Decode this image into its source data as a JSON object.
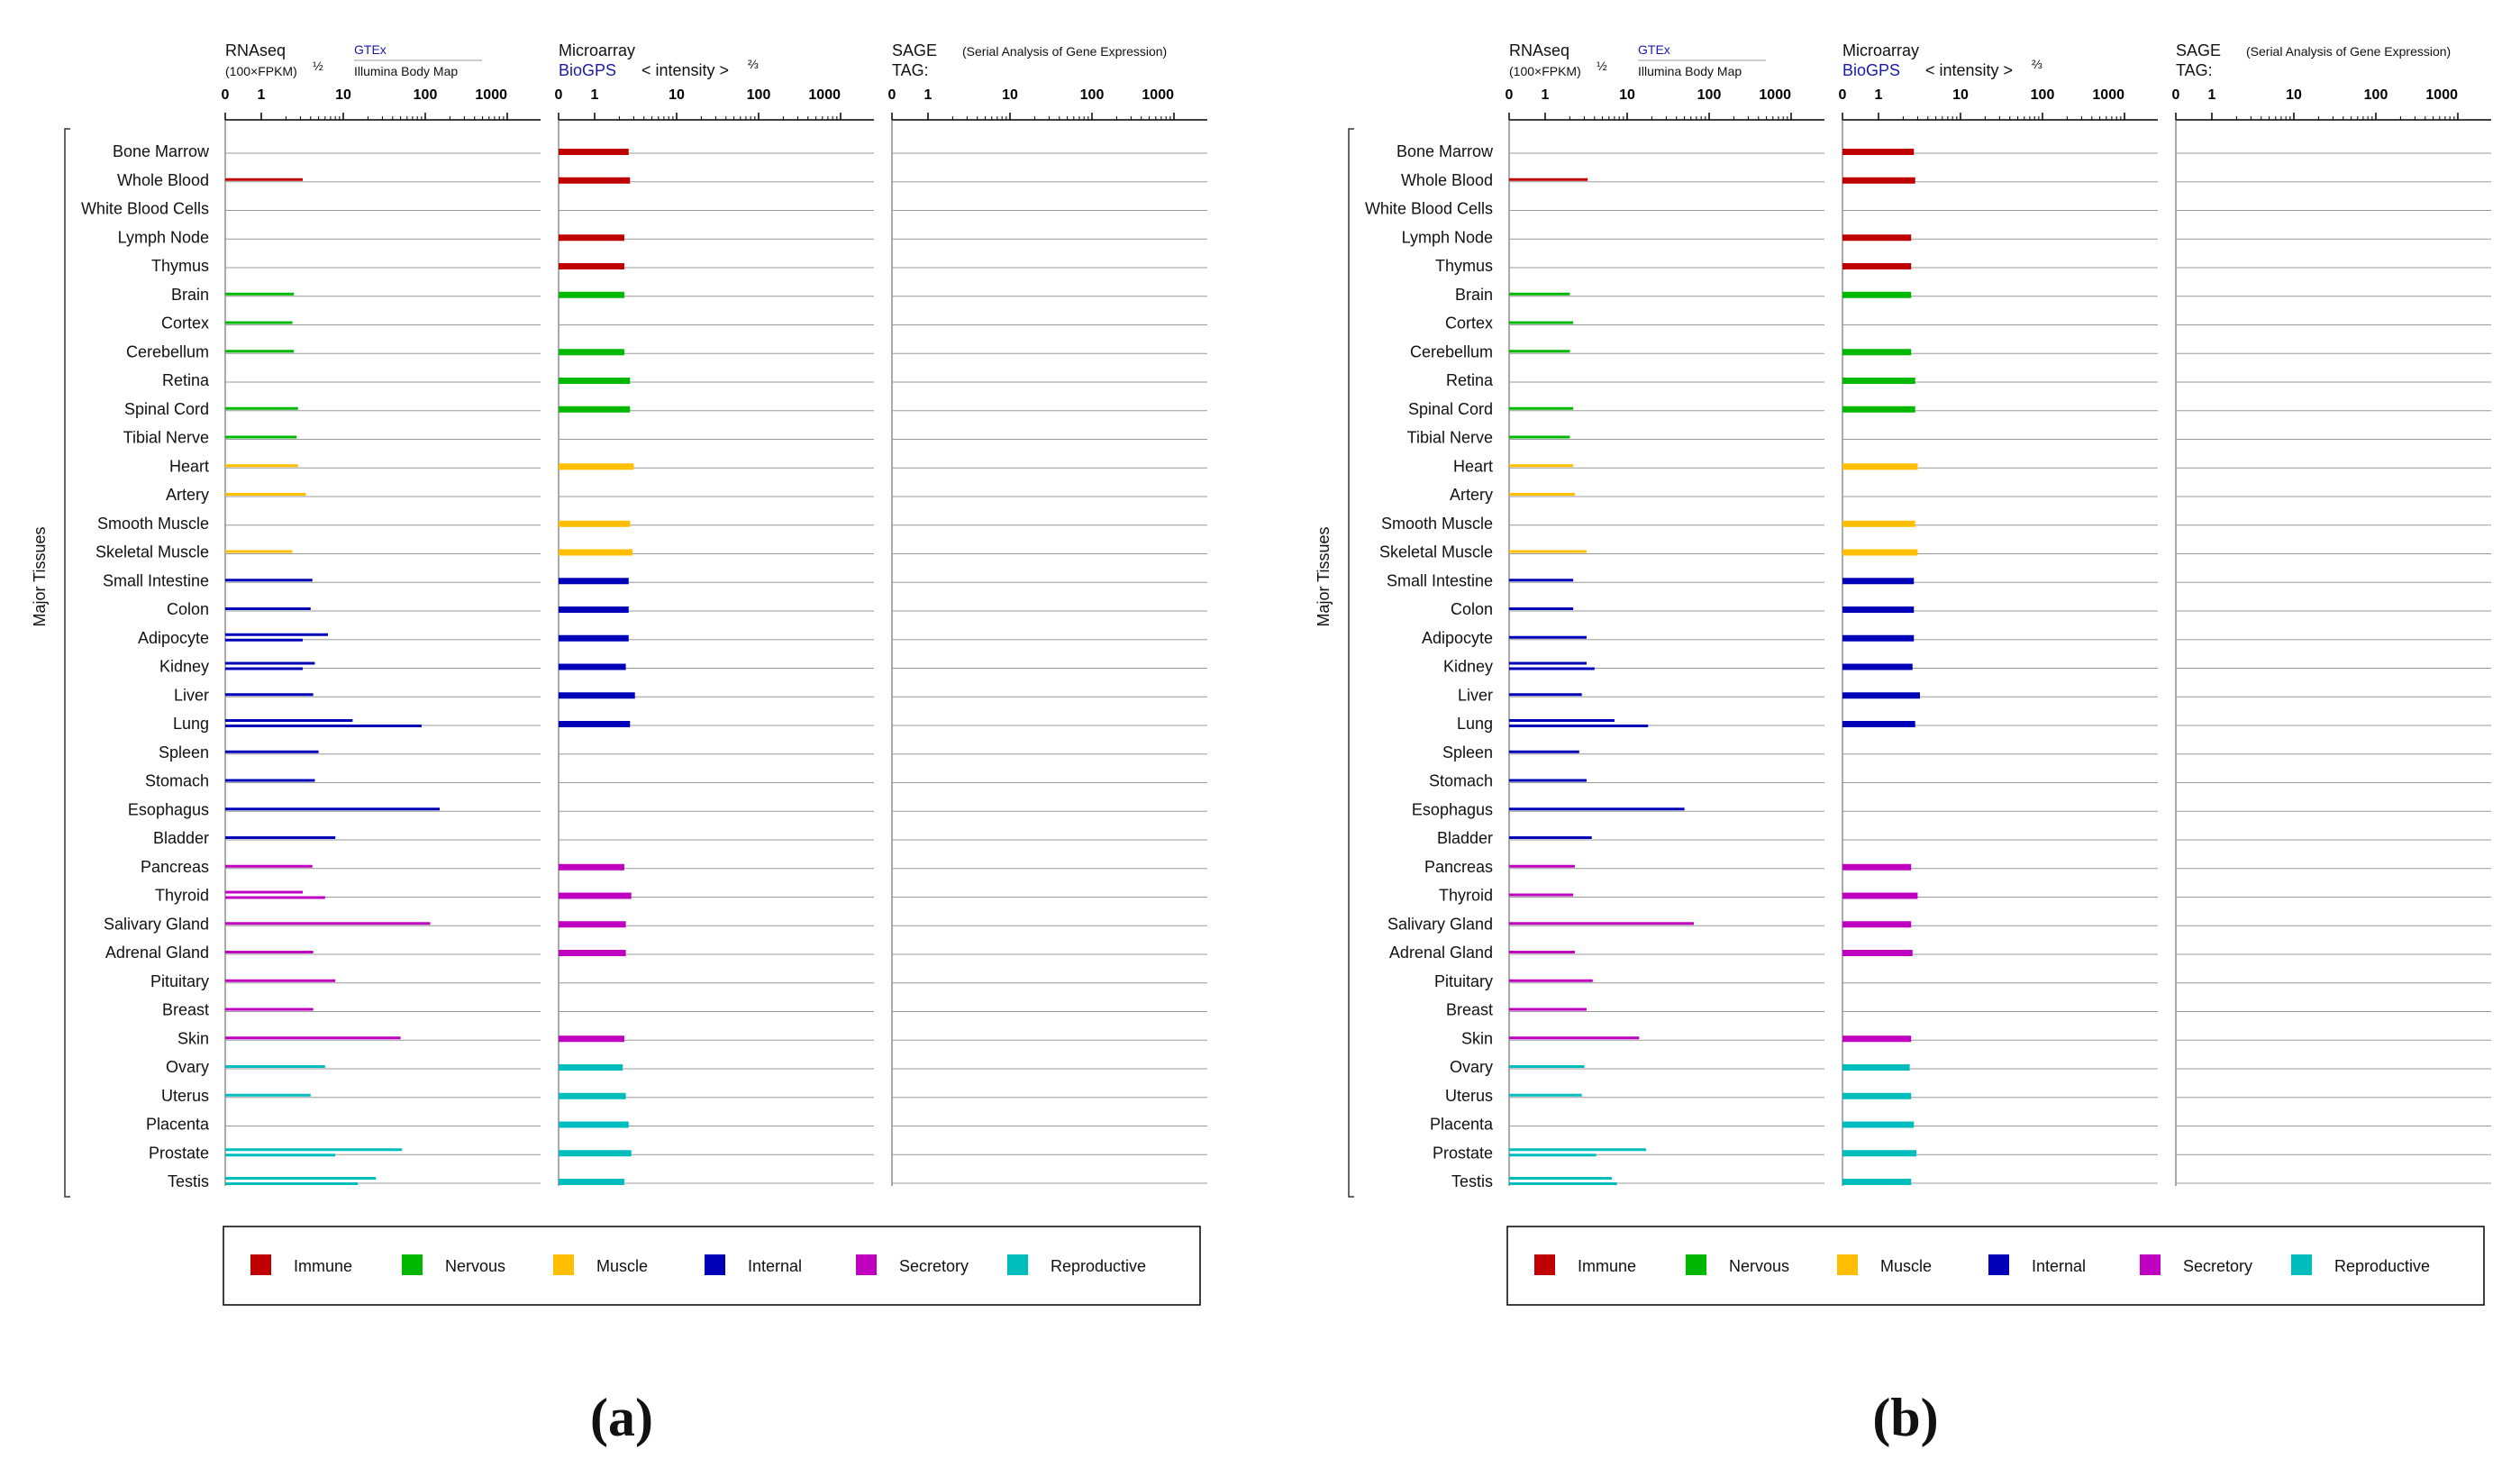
{
  "chart_data": [
    {
      "type": "bar",
      "panel_label": "(a)",
      "y_axis_label": "Major Tissues",
      "columns": {
        "rnaseq": {
          "title": "RNAseq",
          "subtitle": "(100×FPKM)",
          "exponent": "½",
          "source": "GTEx",
          "source2": "Illumina Body Map"
        },
        "microarray": {
          "title": "Microarray",
          "source": "BioGPS",
          "intensity": "< intensity >",
          "exponent": "⅔"
        },
        "sage": {
          "title": "SAGE",
          "tag": "TAG:",
          "description": "(Serial Analysis of Gene Expression)"
        }
      },
      "ticks": [
        "0",
        "1",
        "10",
        "100",
        "1000"
      ],
      "categories": [
        "Bone Marrow",
        "Whole Blood",
        "White Blood Cells",
        "Lymph Node",
        "Thymus",
        "Brain",
        "Cortex",
        "Cerebellum",
        "Retina",
        "Spinal Cord",
        "Tibial Nerve",
        "Heart",
        "Artery",
        "Smooth Muscle",
        "Skeletal Muscle",
        "Small Intestine",
        "Colon",
        "Adipocyte",
        "Kidney",
        "Liver",
        "Lung",
        "Spleen",
        "Stomach",
        "Esophagus",
        "Bladder",
        "Pancreas",
        "Thyroid",
        "Salivary Gland",
        "Adrenal Gland",
        "Pituitary",
        "Breast",
        "Skin",
        "Ovary",
        "Uterus",
        "Placenta",
        "Prostate",
        "Testis"
      ],
      "groups": [
        "immune",
        "immune",
        "immune",
        "immune",
        "immune",
        "nervous",
        "nervous",
        "nervous",
        "nervous",
        "nervous",
        "nervous",
        "muscle",
        "muscle",
        "muscle",
        "muscle",
        "internal",
        "internal",
        "internal",
        "internal",
        "internal",
        "internal",
        "internal",
        "internal",
        "internal",
        "internal",
        "secretory",
        "secretory",
        "secretory",
        "secretory",
        "secretory",
        "secretory",
        "secretory",
        "reproductive",
        "reproductive",
        "reproductive",
        "reproductive",
        "reproductive"
      ],
      "rnaseq_gtex": [
        null,
        3.2,
        null,
        null,
        null,
        2.5,
        2.4,
        2.5,
        null,
        2.8,
        2.7,
        2.8,
        3.5,
        null,
        2.4,
        4.2,
        4.0,
        6.5,
        4.5,
        4.3,
        13,
        5.0,
        4.5,
        150,
        8.0,
        4.2,
        3.2,
        115,
        4.3,
        8.0,
        4.3,
        50,
        6.0,
        4.0,
        null,
        52,
        25
      ],
      "rnaseq_ibm": [
        null,
        null,
        null,
        null,
        null,
        null,
        null,
        null,
        null,
        null,
        null,
        null,
        null,
        null,
        null,
        null,
        null,
        3.2,
        3.2,
        null,
        90,
        null,
        null,
        null,
        null,
        null,
        6.0,
        null,
        null,
        null,
        null,
        null,
        null,
        null,
        null,
        8.0,
        15
      ],
      "microarray": [
        2.6,
        2.7,
        null,
        2.3,
        2.3,
        2.3,
        null,
        2.3,
        2.7,
        2.7,
        null,
        3.0,
        null,
        2.7,
        2.9,
        2.6,
        2.6,
        2.6,
        2.4,
        3.1,
        2.7,
        null,
        null,
        null,
        null,
        2.3,
        2.8,
        2.4,
        2.4,
        null,
        null,
        2.3,
        2.2,
        2.4,
        2.6,
        2.8,
        2.3
      ],
      "sage": []
    },
    {
      "type": "bar",
      "panel_label": "(b)",
      "y_axis_label": "Major Tissues",
      "columns": {
        "rnaseq": {
          "title": "RNAseq",
          "subtitle": "(100×FPKM)",
          "exponent": "½",
          "source": "GTEx",
          "source2": "Illumina Body Map"
        },
        "microarray": {
          "title": "Microarray",
          "source": "BioGPS",
          "intensity": "< intensity >",
          "exponent": "⅔"
        },
        "sage": {
          "title": "SAGE",
          "tag": "TAG:",
          "description": "(Serial Analysis of Gene Expression)"
        }
      },
      "ticks": [
        "0",
        "1",
        "10",
        "100",
        "1000"
      ],
      "categories": [
        "Bone Marrow",
        "Whole Blood",
        "White Blood Cells",
        "Lymph Node",
        "Thymus",
        "Brain",
        "Cortex",
        "Cerebellum",
        "Retina",
        "Spinal Cord",
        "Tibial Nerve",
        "Heart",
        "Artery",
        "Smooth Muscle",
        "Skeletal Muscle",
        "Small Intestine",
        "Colon",
        "Adipocyte",
        "Kidney",
        "Liver",
        "Lung",
        "Spleen",
        "Stomach",
        "Esophagus",
        "Bladder",
        "Pancreas",
        "Thyroid",
        "Salivary Gland",
        "Adrenal Gland",
        "Pituitary",
        "Breast",
        "Skin",
        "Ovary",
        "Uterus",
        "Placenta",
        "Prostate",
        "Testis"
      ],
      "groups": [
        "immune",
        "immune",
        "immune",
        "immune",
        "immune",
        "nervous",
        "nervous",
        "nervous",
        "nervous",
        "nervous",
        "nervous",
        "muscle",
        "muscle",
        "muscle",
        "muscle",
        "internal",
        "internal",
        "internal",
        "internal",
        "internal",
        "internal",
        "internal",
        "internal",
        "internal",
        "internal",
        "secretory",
        "secretory",
        "secretory",
        "secretory",
        "secretory",
        "secretory",
        "secretory",
        "reproductive",
        "reproductive",
        "reproductive",
        "reproductive",
        "reproductive"
      ],
      "rnaseq_gtex": [
        null,
        3.3,
        null,
        null,
        null,
        2.0,
        2.2,
        2.0,
        null,
        2.2,
        2.0,
        2.2,
        2.3,
        null,
        3.2,
        2.2,
        2.2,
        3.2,
        3.2,
        2.8,
        7.0,
        2.6,
        3.2,
        50,
        3.7,
        2.3,
        2.2,
        65,
        2.3,
        3.8,
        3.2,
        14,
        3.0,
        2.8,
        null,
        17,
        6.5
      ],
      "rnaseq_ibm": [
        null,
        null,
        null,
        null,
        null,
        null,
        null,
        null,
        null,
        null,
        null,
        null,
        null,
        null,
        null,
        null,
        null,
        null,
        4.0,
        null,
        18,
        null,
        null,
        null,
        null,
        null,
        null,
        null,
        null,
        null,
        null,
        null,
        null,
        null,
        null,
        4.2,
        7.5
      ],
      "microarray": [
        2.7,
        2.8,
        null,
        2.5,
        2.5,
        2.5,
        null,
        2.5,
        2.8,
        2.8,
        null,
        3.0,
        null,
        2.8,
        3.0,
        2.7,
        2.7,
        2.7,
        2.6,
        3.2,
        2.8,
        null,
        null,
        null,
        null,
        2.5,
        3.0,
        2.5,
        2.6,
        null,
        null,
        2.5,
        2.4,
        2.5,
        2.7,
        2.9,
        2.5
      ],
      "sage": []
    }
  ],
  "legend": [
    {
      "key": "immune",
      "label": "Immune",
      "color": "#c00000"
    },
    {
      "key": "nervous",
      "label": "Nervous",
      "color": "#00b800"
    },
    {
      "key": "muscle",
      "label": "Muscle",
      "color": "#ffbf00"
    },
    {
      "key": "internal",
      "label": "Internal",
      "color": "#0000b8"
    },
    {
      "key": "secretory",
      "label": "Secretory",
      "color": "#c000c0"
    },
    {
      "key": "reproductive",
      "label": "Reproductive",
      "color": "#00bdbd"
    }
  ]
}
